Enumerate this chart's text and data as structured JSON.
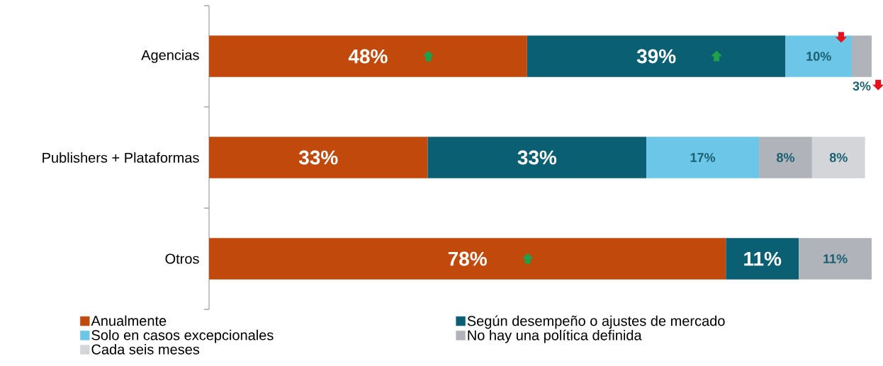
{
  "chart_data": {
    "type": "bar",
    "orientation": "horizontal",
    "stacked": true,
    "legend": "bottom",
    "categories": [
      "Agencias",
      "Publishers + Plataformas",
      "Otros"
    ],
    "series": [
      {
        "name": "Anualmente",
        "color": "#c0490b",
        "values": [
          48,
          33,
          78
        ],
        "value_labels": [
          "48%",
          "33%",
          "78%"
        ]
      },
      {
        "name": "Según desempeño o ajustes de mercado",
        "color": "#0b5f73",
        "values": [
          39,
          33,
          11
        ],
        "value_labels": [
          "39%",
          "33%",
          "11%"
        ]
      },
      {
        "name": "Solo en casos excepcionales",
        "color": "#6cc6e8",
        "values": [
          10,
          17,
          null
        ],
        "value_labels": [
          "10%",
          "17%",
          null
        ]
      },
      {
        "name": "No hay una política definida",
        "color": "#b1b3bb",
        "values": [
          3,
          8,
          11
        ],
        "value_labels": [
          "3%",
          "8%",
          "11%"
        ]
      },
      {
        "name": "Cada seis meses",
        "color": "#d3d5d9",
        "values": [
          null,
          8,
          null
        ],
        "value_labels": [
          null,
          "8%",
          null
        ]
      }
    ]
  }
}
